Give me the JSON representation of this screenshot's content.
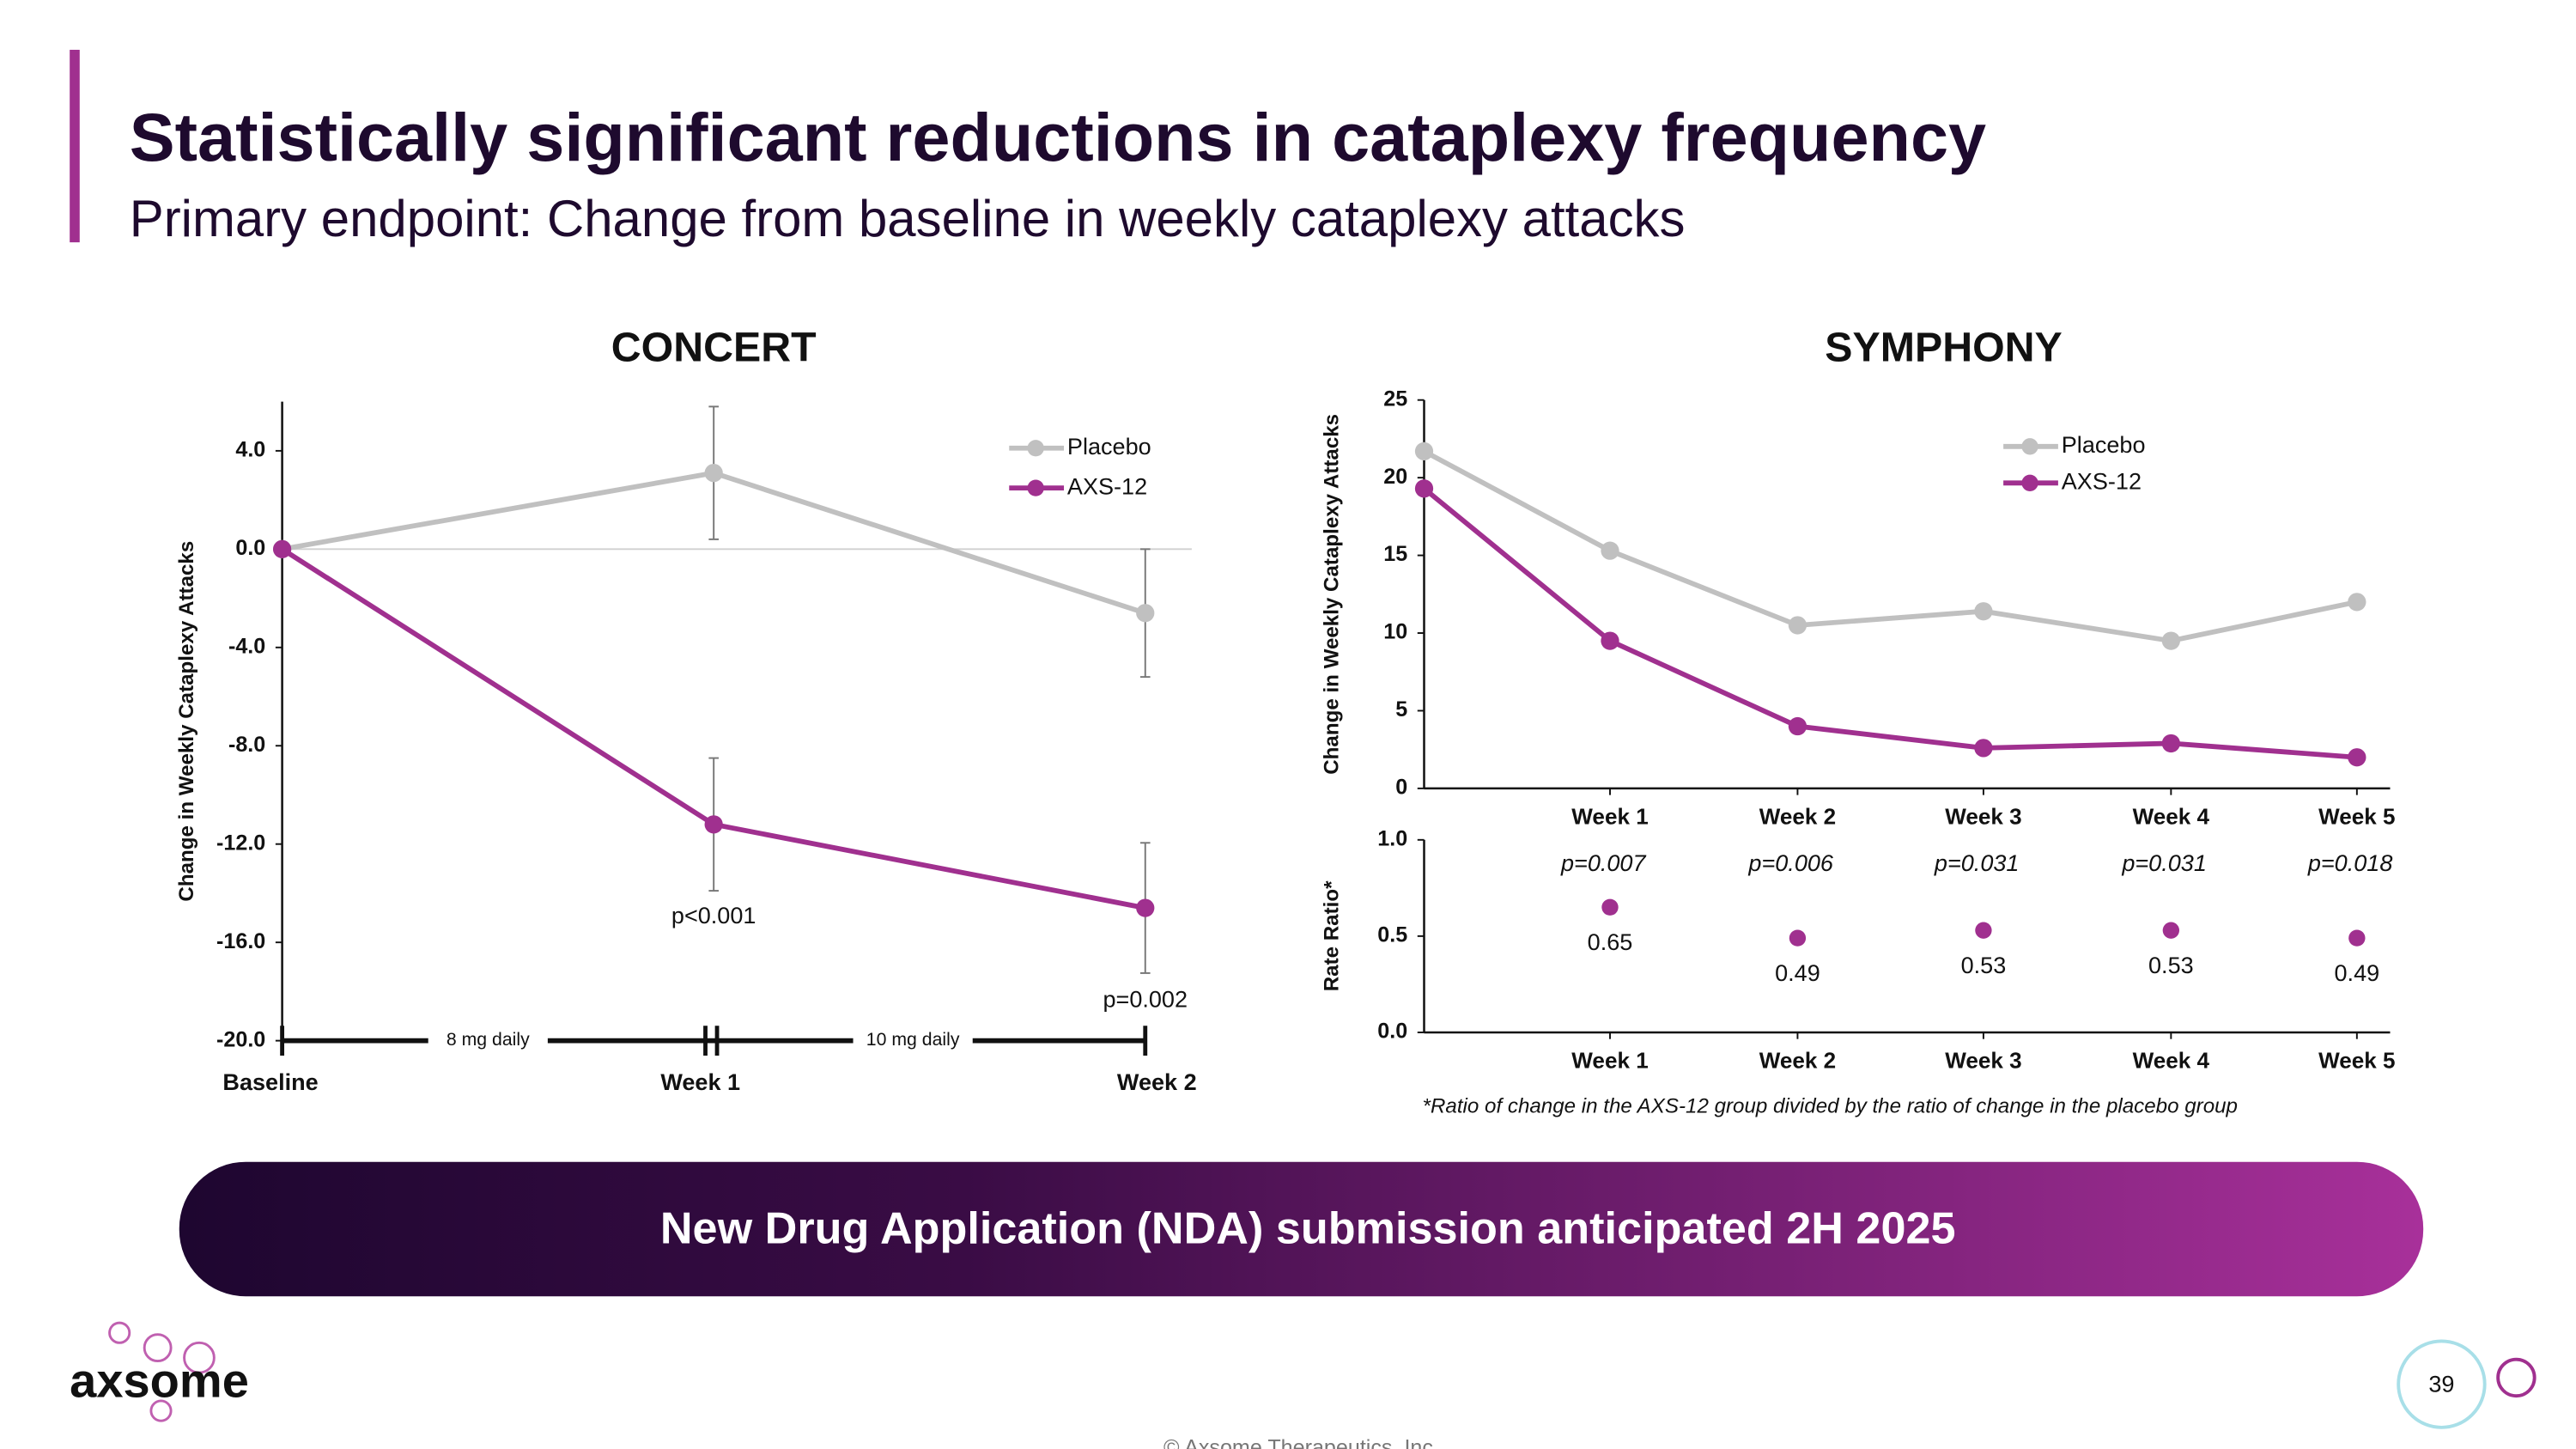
{
  "header": {
    "title": "Statistically significant reductions in cataplexy frequency",
    "subtitle": "Primary endpoint: Change from baseline in weekly cataplexy attacks"
  },
  "chart_data": [
    {
      "type": "line",
      "title": "CONCERT",
      "y_label": "Change in Weekly Cataplexy Attacks",
      "categories": [
        "Baseline",
        "Week 1",
        "Week 2"
      ],
      "series": [
        {
          "name": "Placebo",
          "color": "#c0c0c0",
          "values": [
            0,
            3.1,
            -2.6
          ],
          "errors": [
            null,
            2.7,
            2.6
          ]
        },
        {
          "name": "AXS-12",
          "color": "#a0308f",
          "values": [
            0,
            -11.2,
            -14.6
          ],
          "errors": [
            null,
            2.7,
            2.65
          ]
        }
      ],
      "ylim": [
        -20,
        6
      ],
      "yticks": [
        {
          "value": -20,
          "label": "-20.0"
        },
        {
          "value": -16,
          "label": "-16.0"
        },
        {
          "value": -12,
          "label": "-12.0"
        },
        {
          "value": -8,
          "label": "-8.0"
        },
        {
          "value": -4,
          "label": "-4.0"
        },
        {
          "value": 0,
          "label": "0.0"
        },
        {
          "value": 4,
          "label": "4.0"
        }
      ],
      "legend": "upper right",
      "annotations": [
        "p<0.001",
        "p=0.002"
      ],
      "dose_labels": [
        "8 mg daily",
        "10 mg daily"
      ]
    },
    {
      "type": "line",
      "title": "SYMPHONY",
      "y_label": "Change in Weekly Cataplexy Attacks",
      "categories": [
        null,
        "Week 1",
        "Week 2",
        "Week 3",
        "Week 4",
        "Week 5"
      ],
      "series": [
        {
          "name": "Placebo",
          "color": "#c0c0c0",
          "values": [
            21.7,
            15.3,
            10.5,
            11.4,
            9.5,
            12.0
          ]
        },
        {
          "name": "AXS-12",
          "color": "#a0308f",
          "values": [
            19.3,
            9.5,
            4.0,
            2.6,
            2.9,
            2.0
          ]
        }
      ],
      "ylim": [
        0,
        25
      ],
      "yticks": [
        0,
        5,
        10,
        15,
        20,
        25
      ],
      "legend": "upper right"
    },
    {
      "type": "dot",
      "y_label": "Rate Ratio*",
      "categories": [
        "Week 1",
        "Week 2",
        "Week 3",
        "Week 4",
        "Week 5"
      ],
      "values": [
        0.65,
        0.49,
        0.53,
        0.53,
        0.49
      ],
      "color": "#a0308f",
      "annotations": [
        "p=0.007",
        "p=0.006",
        "p=0.031",
        "p=0.031",
        "p=0.018"
      ],
      "ylim": [
        0,
        1
      ],
      "yticks": [
        {
          "value": 0,
          "label": "0.0"
        },
        {
          "value": 0.5,
          "label": "0.5"
        },
        {
          "value": 1,
          "label": "1.0"
        }
      ],
      "note": "*Ratio of change in the AXS-12 group divided by the ratio of change in the placebo group"
    }
  ],
  "banner": "New Drug Application (NDA) submission anticipated 2H 2025",
  "logo": "axsome",
  "page_number": "39",
  "copyright": "© Axsome Therapeutics, Inc."
}
